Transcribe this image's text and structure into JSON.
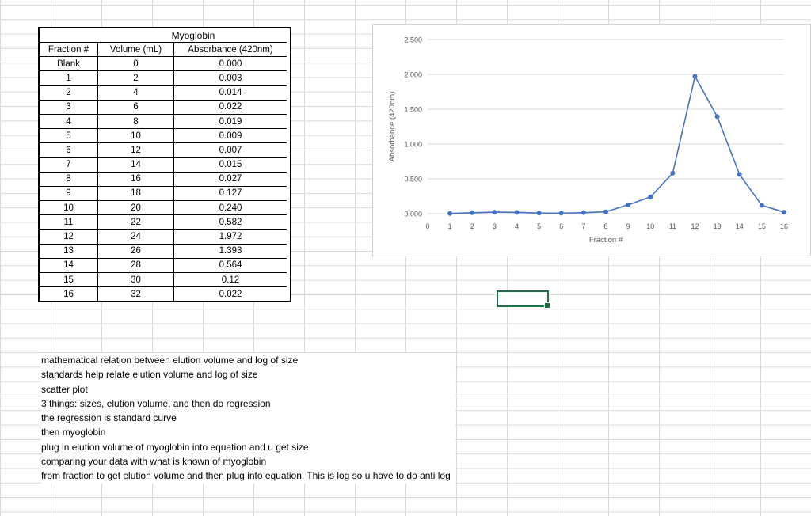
{
  "table": {
    "title": "Myoglobin",
    "headers": [
      "Fraction #",
      "Volume (mL)",
      "Absorbance (420nm)"
    ],
    "rows": [
      [
        "Blank",
        "0",
        "0.000"
      ],
      [
        "1",
        "2",
        "0.003"
      ],
      [
        "2",
        "4",
        "0.014"
      ],
      [
        "3",
        "6",
        "0.022"
      ],
      [
        "4",
        "8",
        "0.019"
      ],
      [
        "5",
        "10",
        "0.009"
      ],
      [
        "6",
        "12",
        "0.007"
      ],
      [
        "7",
        "14",
        "0.015"
      ],
      [
        "8",
        "16",
        "0.027"
      ],
      [
        "9",
        "18",
        "0.127"
      ],
      [
        "10",
        "20",
        "0.240"
      ],
      [
        "11",
        "22",
        "0.582"
      ],
      [
        "12",
        "24",
        "1.972"
      ],
      [
        "13",
        "26",
        "1.393"
      ],
      [
        "14",
        "28",
        "0.564"
      ],
      [
        "15",
        "30",
        "0.12"
      ],
      [
        "16",
        "32",
        "0.022"
      ]
    ]
  },
  "chart_data": {
    "type": "line",
    "title": "",
    "xlabel": "Fraction #",
    "ylabel": "Absorbance (420nm)",
    "xlim": [
      0,
      16
    ],
    "ylim": [
      0,
      2.5
    ],
    "x_ticks": [
      "0",
      "1",
      "2",
      "3",
      "4",
      "5",
      "6",
      "7",
      "8",
      "9",
      "10",
      "11",
      "12",
      "13",
      "14",
      "15",
      "16"
    ],
    "y_ticks": [
      "0.000",
      "0.500",
      "1.000",
      "1.500",
      "2.000",
      "2.500"
    ],
    "grid": true,
    "color": "#4472c4",
    "series": [
      {
        "x": [
          1,
          2,
          3,
          4,
          5,
          6,
          7,
          8,
          9,
          10,
          11,
          12,
          13,
          14,
          15,
          16
        ],
        "values": [
          0.003,
          0.014,
          0.022,
          0.019,
          0.009,
          0.007,
          0.015,
          0.027,
          0.127,
          0.24,
          0.582,
          1.972,
          1.393,
          0.564,
          0.12,
          0.022
        ]
      }
    ]
  },
  "notes": [
    "mathematical relation between elution volume and log of size",
    "standards help relate elution volume and log of size",
    "scatter plot",
    "3 things: sizes, elution volume, and then do regression",
    "the regression is standard curve",
    "then myoglobin",
    "plug in elution volume of myoglobin into equation and u get size",
    "comparing your data with what is known of myoglobin",
    "from fraction to get elution volume and then plug into equation. This is log so u have to do anti log"
  ],
  "colors": {
    "selection": "#1e7145",
    "series": "#4472c4",
    "gridline": "#d9d9d9"
  }
}
